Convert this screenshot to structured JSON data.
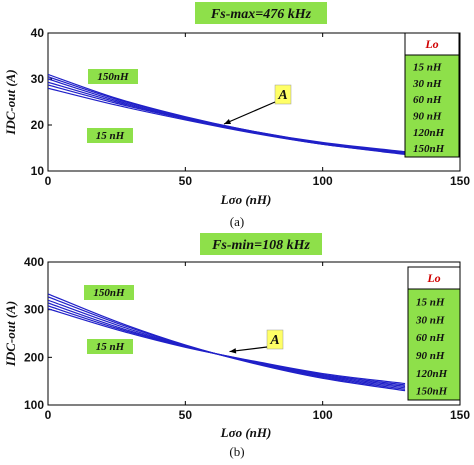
{
  "chart_data": [
    {
      "type": "line",
      "title": "Fs-max=476 kHz",
      "xlabel": "Lσo (nH)",
      "ylabel": "IDC-out (A)",
      "xlim": [
        0,
        150
      ],
      "ylim": [
        10,
        40
      ],
      "xticks": [
        "0",
        "50",
        "100",
        "150"
      ],
      "yticks": [
        "10",
        "20",
        "30",
        "40"
      ],
      "caption": "(a)",
      "legend": {
        "title": "Lo",
        "position": "right",
        "entries": [
          "15 nH",
          "30 nH",
          "60 nH",
          "90 nH",
          "120nH",
          "150nH"
        ]
      },
      "annotations": {
        "upper": "150nH",
        "lower": "15 nH",
        "point": "A"
      },
      "series": [
        {
          "x": [
            0,
            25,
            50,
            75,
            100,
            130
          ],
          "values": [
            31.0,
            25.8,
            21.8,
            18.6,
            16.2,
            14.2
          ]
        },
        {
          "x": [
            0,
            25,
            50,
            75,
            100,
            130
          ],
          "values": [
            30.5,
            25.6,
            21.7,
            18.6,
            16.1,
            14.1
          ]
        },
        {
          "x": [
            0,
            25,
            50,
            75,
            100,
            130
          ],
          "values": [
            30.0,
            25.3,
            21.5,
            18.4,
            16.0,
            14.0
          ]
        },
        {
          "x": [
            0,
            25,
            50,
            75,
            100,
            130
          ],
          "values": [
            29.3,
            25.0,
            21.4,
            18.4,
            15.9,
            13.8
          ]
        },
        {
          "x": [
            0,
            25,
            50,
            75,
            100,
            130
          ],
          "values": [
            28.7,
            24.7,
            21.3,
            18.3,
            15.8,
            13.7
          ]
        },
        {
          "x": [
            0,
            25,
            50,
            75,
            100,
            130
          ],
          "values": [
            28.0,
            24.3,
            21.1,
            18.2,
            15.8,
            13.6
          ]
        }
      ],
      "point_A": {
        "x": 63,
        "y": 20.0
      }
    },
    {
      "type": "line",
      "title": "Fs-min=108 kHz",
      "xlabel": "Lσo (nH)",
      "ylabel": "IDC-out (A)",
      "xlim": [
        0,
        150
      ],
      "ylim": [
        100,
        400
      ],
      "xticks": [
        "0",
        "50",
        "100",
        "150"
      ],
      "yticks": [
        "100",
        "200",
        "300",
        "400"
      ],
      "caption": "(b)",
      "legend": {
        "title": "Lo",
        "position": "right",
        "entries": [
          "15 nH",
          "30 nH",
          "60 nH",
          "90 nH",
          "120nH",
          "150nH"
        ]
      },
      "annotations": {
        "upper": "150nH",
        "lower": "15 nH",
        "point": "A"
      },
      "series": [
        {
          "x": [
            0,
            25,
            50,
            75,
            100,
            130
          ],
          "values": [
            333,
            275,
            226,
            187,
            156,
            130
          ]
        },
        {
          "x": [
            0,
            25,
            50,
            75,
            100,
            130
          ],
          "values": [
            327,
            272,
            225,
            188,
            158,
            133
          ]
        },
        {
          "x": [
            0,
            25,
            50,
            75,
            100,
            130
          ],
          "values": [
            320,
            268,
            224,
            189,
            160,
            136
          ]
        },
        {
          "x": [
            0,
            25,
            50,
            75,
            100,
            130
          ],
          "values": [
            314,
            264,
            223,
            190,
            162,
            139
          ]
        },
        {
          "x": [
            0,
            25,
            50,
            75,
            100,
            130
          ],
          "values": [
            308,
            261,
            222,
            191,
            164,
            142
          ]
        },
        {
          "x": [
            0,
            25,
            50,
            75,
            100,
            130
          ],
          "values": [
            302,
            258,
            221,
            192,
            166,
            145
          ]
        }
      ],
      "point_A": {
        "x": 65,
        "y": 210
      }
    }
  ],
  "colors": {
    "line": "#2020c8",
    "label_bg": "#8ee04a",
    "point_bg": "#ffff66",
    "legend_head": "#d00000"
  }
}
